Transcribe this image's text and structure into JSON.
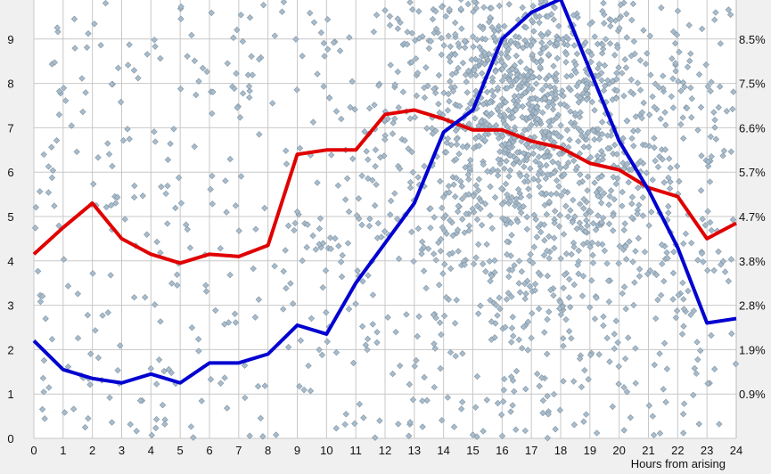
{
  "chart_data": {
    "type": "line",
    "title": "",
    "xlabel": "Hours from arising",
    "ylabel": "",
    "xlim": [
      0,
      24
    ],
    "ylim": [
      0,
      9.9
    ],
    "grid": true,
    "legend": "none",
    "x": [
      0,
      1,
      2,
      3,
      4,
      5,
      6,
      7,
      8,
      9,
      10,
      11,
      12,
      13,
      14,
      15,
      16,
      17,
      18,
      19,
      20,
      21,
      22,
      23,
      24
    ],
    "x_tick_labels": [
      "0",
      "1",
      "2",
      "3",
      "4",
      "5",
      "6",
      "7",
      "8",
      "9",
      "10",
      "11",
      "12",
      "13",
      "14",
      "15",
      "16",
      "17",
      "18",
      "19",
      "20",
      "21",
      "22",
      "23",
      "24"
    ],
    "y_tick_labels": [
      "0",
      "1",
      "2",
      "3",
      "4",
      "5",
      "6",
      "7",
      "8",
      "9"
    ],
    "y2_tick_labels": [
      "0.9%",
      "1.9%",
      "2.8%",
      "3.8%",
      "4.7%",
      "5.7%",
      "6.6%",
      "7.5%",
      "8.5%"
    ],
    "series": [
      {
        "color": "#e00000",
        "values": [
          4.15,
          4.75,
          5.3,
          4.5,
          4.15,
          3.95,
          4.15,
          4.1,
          4.35,
          6.4,
          6.5,
          6.5,
          7.3,
          7.4,
          7.2,
          6.95,
          6.95,
          6.7,
          6.55,
          6.2,
          6.05,
          5.65,
          5.45,
          4.5,
          4.85
        ]
      },
      {
        "color": "#0000d0",
        "values": [
          2.2,
          1.55,
          1.35,
          1.25,
          1.45,
          1.25,
          1.7,
          1.7,
          1.9,
          2.55,
          2.35,
          3.5,
          4.4,
          5.3,
          6.9,
          7.4,
          9.0,
          9.6,
          9.9,
          8.3,
          6.7,
          5.6,
          4.3,
          2.6,
          2.7
        ]
      }
    ],
    "scatter": {
      "type": "scatter",
      "color": "#a8bccc",
      "edge_color": "#7f93a3"
    }
  }
}
